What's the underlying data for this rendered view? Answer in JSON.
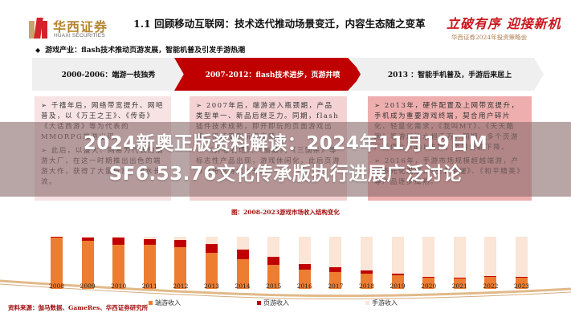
{
  "header": {
    "logo_cn": "华西证券",
    "logo_en": "HUAXI SECURITIES",
    "title": "1.1 回顾移动互联网：技术迭代推动场景变迁，内容生态随之变革",
    "slogan": "立破有序 迎接新机",
    "conference": "华西证券2024年投资策略会",
    "bullet": "游戏产业：flash技术推动页游发展，智能机普及引发手游热潮"
  },
  "timeline": [
    {
      "label": "2000-2006：端游一枝独秀"
    },
    {
      "label": "2007-2012：flash技术进步，页游井喷"
    },
    {
      "label": "2013 ：智能手机普及，手游后来居上"
    }
  ],
  "boxes": [
    {
      "paragraphs": [
        "➢ 千禧年后，网络带宽提升、网吧普及，以《万王之王》、《传奇》《大话西游》等为代表的MMORPG端游出现。",
        "➢ 此后，以盛大、网易为代表的端游大厂，在这一时期推出出色的端游大作，获得了大量玩家，细水长流。"
      ]
    },
    {
      "paragraphs": [
        "➢ 2007年后，端游进入瓶颈期，产品类型单一、新品后继乏力。同期，flash插件技术成熟，即开即玩的页面游戏出现，迅速受到玩家青睐。",
        "➢ 《开心农场》、《偷菜》、《三国杀》等标志性产品出现，游戏休闲化，此后页游市场份额持续上升。"
      ]
    },
    {
      "paragraphs": [
        "➢ 2013年，硬件配置及上网带宽提升，手机成为重要游戏终端，契合用户碎片化、轻量化需求，《我叫MT》、《天天酷跑》等游戏流水超千万。同期，多个页游厂商停止flash支持，页游份额下降。",
        "➢ 2016年，手游市场规模超越端游，产品多元化发展，《王者荣耀》、《和平精英》等产品逐步成熟。"
      ]
    }
  ],
  "chart_data": {
    "type": "bar",
    "title": "图：2008-2023游戏市场收入结构变化",
    "stacked": true,
    "percent": true,
    "categories": [
      "2008",
      "2009",
      "2010",
      "2011",
      "2012",
      "2013",
      "2014",
      "2015",
      "2016",
      "2017",
      "2018",
      "2019",
      "2020",
      "2021",
      "2022",
      "2023"
    ],
    "series": [
      {
        "name": "端游收入",
        "color": "#ed7d31",
        "values": [
          98,
          93,
          85,
          84,
          80,
          70,
          57,
          46,
          37,
          33,
          30,
          26,
          21,
          20,
          24,
          22
        ]
      },
      {
        "name": "页游收入",
        "color": "#c00000",
        "values": [
          2,
          6,
          13,
          12,
          14,
          16,
          18,
          15,
          11,
          8,
          6,
          4,
          2,
          1,
          1,
          1
        ]
      },
      {
        "name": "手游收入",
        "color": "#fbe5d6",
        "values": [
          0,
          1,
          2,
          4,
          6,
          14,
          25,
          39,
          52,
          59,
          64,
          70,
          77,
          79,
          75,
          77
        ]
      }
    ],
    "ylim": [
      0,
      100
    ],
    "grid": false,
    "legend_position": "bottom"
  },
  "chart": {
    "title": "图：2008-2023游戏市场收入结构变化",
    "legend": [
      "端游收入",
      "页游收入",
      "手游收入"
    ]
  },
  "source": "资料来源：伽马数据、GameRes、华西证券研究所",
  "overlay": {
    "line1": "2024新奥正版资料解读：2024年11月19日M",
    "line2": "SF6.53.76文化传承版执行进展广泛讨论"
  }
}
